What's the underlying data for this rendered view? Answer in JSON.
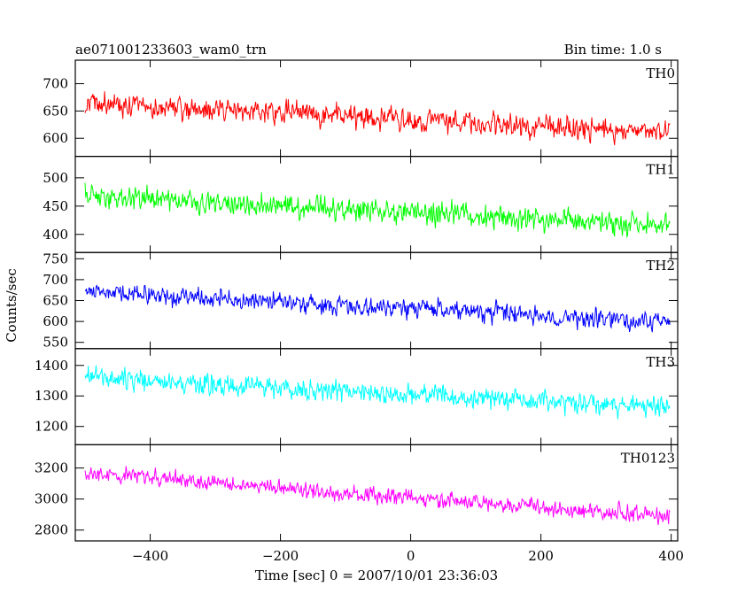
{
  "header": {
    "left_title": "ae071001233603_wam0_trn",
    "right_title": "Bin time: 1.0 s"
  },
  "axes": {
    "xlabel": "Time [sec] 0 = 2007/10/01 23:36:03",
    "ylabel": "Counts/sec"
  },
  "chart_data": {
    "type": "line",
    "x_range": [
      -515,
      410
    ],
    "x_ticks": [
      -400,
      -200,
      0,
      200,
      400
    ],
    "x_start": -500,
    "x_end": 398,
    "bin_time_s": 1.0,
    "grid": false,
    "panels": [
      {
        "name": "TH0",
        "color": "#ff0000",
        "ylim": [
          567,
          743
        ],
        "yticks": [
          600,
          650,
          700
        ],
        "trend": {
          "start": 665,
          "end": 610
        },
        "noise_amplitude": 32
      },
      {
        "name": "TH1",
        "color": "#00ff00",
        "ylim": [
          368,
          538
        ],
        "yticks": [
          400,
          450,
          500
        ],
        "trend": {
          "start": 470,
          "end": 415
        },
        "noise_amplitude": 30
      },
      {
        "name": "TH2",
        "color": "#0000ff",
        "ylim": [
          535,
          765
        ],
        "yticks": [
          550,
          600,
          650,
          700,
          750
        ],
        "trend": {
          "start": 670,
          "end": 600
        },
        "noise_amplitude": 35
      },
      {
        "name": "TH3",
        "color": "#00ffff",
        "ylim": [
          1140,
          1455
        ],
        "yticks": [
          1200,
          1300,
          1400
        ],
        "trend": {
          "start": 1360,
          "end": 1260
        },
        "noise_amplitude": 50
      },
      {
        "name": "TH0123",
        "color": "#ff00ff",
        "ylim": [
          2730,
          3350
        ],
        "yticks": [
          2800,
          3000,
          3200
        ],
        "trend": {
          "start": 3170,
          "end": 2880
        },
        "noise_amplitude": 80
      }
    ]
  }
}
